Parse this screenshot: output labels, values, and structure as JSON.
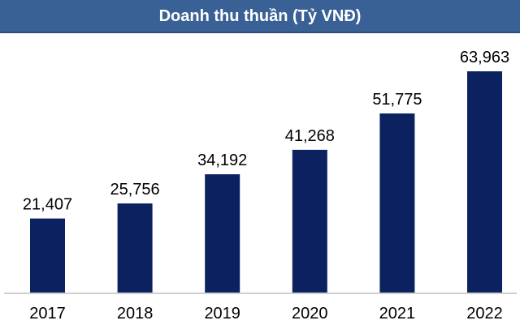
{
  "chart_data": {
    "type": "bar",
    "title": "Doanh thu thuần (Tỷ VNĐ)",
    "categories": [
      "2017",
      "2018",
      "2019",
      "2020",
      "2021",
      "2022"
    ],
    "values": [
      21407,
      25756,
      34192,
      41268,
      51775,
      63963
    ],
    "value_labels": [
      "21,407",
      "25,756",
      "34,192",
      "41,268",
      "51,775",
      "63,963"
    ],
    "bar_color": "#0b2160",
    "header_color": "#3a6195",
    "xlabel": "",
    "ylabel": "",
    "ylim": [
      0,
      64000
    ],
    "grid": false,
    "legend": "none"
  }
}
